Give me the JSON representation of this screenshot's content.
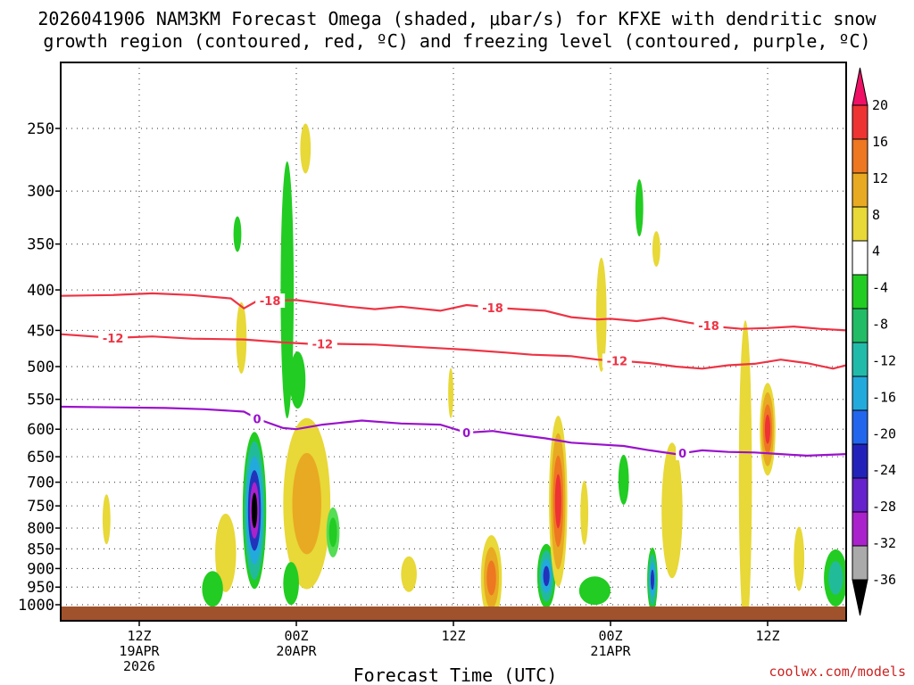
{
  "chart_data": {
    "type": "heatmap",
    "title_line1": "2026041906 NAM3KM Forecast Omega (shaded, μbar/s) for KFXE with dendritic snow",
    "title_line2": "growth region (contoured, red, ºC) and freezing level (contoured, purple, ºC)",
    "xlabel": "Forecast Time (UTC)",
    "credit": "coolwx.com/models",
    "x_unit": "forecast hours from 2026-04-19 06Z",
    "xlim": [
      0,
      60
    ],
    "ylim_hpa": [
      1030,
      200
    ],
    "y_ticks": [
      250,
      300,
      350,
      400,
      450,
      500,
      550,
      600,
      650,
      700,
      750,
      800,
      850,
      900,
      950,
      1000
    ],
    "x_ticks": [
      {
        "hour": 6,
        "line1": "12Z",
        "line2": "19APR",
        "line3": "2026"
      },
      {
        "hour": 18,
        "line1": "00Z",
        "line2": "20APR",
        "line3": ""
      },
      {
        "hour": 30,
        "line1": "12Z",
        "line2": "",
        "line3": ""
      },
      {
        "hour": 42,
        "line1": "00Z",
        "line2": "21APR",
        "line3": ""
      },
      {
        "hour": 54,
        "line1": "12Z",
        "line2": "",
        "line3": ""
      }
    ],
    "colorbar": {
      "labels": [
        "20",
        "16",
        "12",
        "8",
        "4",
        "-4",
        "-8",
        "-12",
        "-16",
        "-20",
        "-24",
        "-28",
        "-32",
        "-36"
      ],
      "colors": [
        "#ee1166",
        "#ee3333",
        "#ee7722",
        "#e8aa22",
        "#e8d838",
        "#ffffff",
        "#22cc22",
        "#22bb66",
        "#22bbaa",
        "#22aadd",
        "#2266ee",
        "#2222bb",
        "#6622cc",
        "#aa22cc",
        "#aaaaaa",
        "#000000"
      ]
    },
    "contours": [
      {
        "name": "-18 C isotherm",
        "color": "#ee3344",
        "label": "-18",
        "label_hours": [
          16,
          33,
          49.5
        ],
        "points": [
          [
            0,
            407
          ],
          [
            4,
            406
          ],
          [
            7,
            404
          ],
          [
            10,
            406
          ],
          [
            13,
            410
          ],
          [
            14,
            422
          ],
          [
            15,
            413
          ],
          [
            18,
            412
          ],
          [
            20,
            416
          ],
          [
            22,
            420
          ],
          [
            24,
            423
          ],
          [
            26,
            420
          ],
          [
            29,
            425
          ],
          [
            31,
            418
          ],
          [
            33,
            421
          ],
          [
            35,
            423
          ],
          [
            37,
            425
          ],
          [
            39,
            433
          ],
          [
            41,
            436
          ],
          [
            42,
            435
          ],
          [
            44,
            438
          ],
          [
            46,
            434
          ],
          [
            48,
            440
          ],
          [
            50,
            445
          ],
          [
            52,
            448
          ],
          [
            54,
            447
          ],
          [
            56,
            445
          ],
          [
            58,
            448
          ],
          [
            60,
            450
          ]
        ]
      },
      {
        "name": "-12 C isotherm",
        "color": "#ee3344",
        "label": "-12",
        "label_hours": [
          4,
          20,
          42.5
        ],
        "points": [
          [
            0,
            455
          ],
          [
            4,
            460
          ],
          [
            7,
            458
          ],
          [
            10,
            461
          ],
          [
            14,
            462
          ],
          [
            17,
            466
          ],
          [
            19,
            468
          ],
          [
            21,
            468
          ],
          [
            24,
            469
          ],
          [
            27,
            472
          ],
          [
            31,
            476
          ],
          [
            34,
            480
          ],
          [
            36,
            483
          ],
          [
            39,
            485
          ],
          [
            41,
            490
          ],
          [
            43,
            492
          ],
          [
            45,
            495
          ],
          [
            47,
            500
          ],
          [
            49,
            503
          ],
          [
            51,
            498
          ],
          [
            53,
            496
          ],
          [
            55,
            490
          ],
          [
            57,
            495
          ],
          [
            59,
            503
          ],
          [
            60,
            498
          ]
        ]
      },
      {
        "name": "0 C freezing level",
        "color": "#9911cc",
        "label": "0",
        "label_hours": [
          15,
          31,
          47.5
        ],
        "points": [
          [
            0,
            562
          ],
          [
            4,
            563
          ],
          [
            8,
            564
          ],
          [
            11,
            566
          ],
          [
            14,
            570
          ],
          [
            15,
            582
          ],
          [
            17,
            598
          ],
          [
            18,
            600
          ],
          [
            20,
            592
          ],
          [
            23,
            585
          ],
          [
            26,
            590
          ],
          [
            29,
            592
          ],
          [
            31,
            606
          ],
          [
            33,
            603
          ],
          [
            35,
            610
          ],
          [
            37,
            616
          ],
          [
            39,
            624
          ],
          [
            41,
            627
          ],
          [
            43,
            630
          ],
          [
            45,
            638
          ],
          [
            47,
            645
          ],
          [
            49,
            638
          ],
          [
            51,
            641
          ],
          [
            53,
            642
          ],
          [
            55,
            645
          ],
          [
            57,
            648
          ],
          [
            60,
            645
          ]
        ]
      }
    ],
    "omega_features": [
      {
        "hour": 14.8,
        "hpa": 760,
        "rx": 0.9,
        "ry": 110,
        "levels": [
          -8,
          -12,
          -16,
          -24,
          -32,
          -36
        ],
        "note": "strongest upward motion core"
      },
      {
        "hour": 17.3,
        "hpa": 400,
        "rx": 0.5,
        "ry": 180,
        "levels": [
          -8
        ],
        "note": "tall upward column"
      },
      {
        "hour": 18.7,
        "hpa": 265,
        "rx": 0.4,
        "ry": 35,
        "levels": [
          4
        ]
      },
      {
        "hour": 18.1,
        "hpa": 520,
        "rx": 0.6,
        "ry": 40,
        "levels": [
          -8
        ]
      },
      {
        "hour": 13.8,
        "hpa": 460,
        "rx": 0.4,
        "ry": 50,
        "levels": [
          4
        ]
      },
      {
        "hour": 13.5,
        "hpa": 340,
        "rx": 0.3,
        "ry": 25,
        "levels": [
          -8
        ]
      },
      {
        "hour": 18.8,
        "hpa": 745,
        "rx": 1.8,
        "ry": 120,
        "levels": [
          4,
          8
        ]
      },
      {
        "hour": 20.8,
        "hpa": 810,
        "rx": 0.5,
        "ry": 35,
        "levels": [
          -4,
          -8
        ]
      },
      {
        "hour": 12.6,
        "hpa": 860,
        "rx": 0.8,
        "ry": 55,
        "levels": [
          4
        ]
      },
      {
        "hour": 11.6,
        "hpa": 955,
        "rx": 0.8,
        "ry": 25,
        "levels": [
          -8
        ]
      },
      {
        "hour": 17.6,
        "hpa": 940,
        "rx": 0.6,
        "ry": 30,
        "levels": [
          -8
        ]
      },
      {
        "hour": 3.5,
        "hpa": 780,
        "rx": 0.3,
        "ry": 35,
        "levels": [
          4
        ]
      },
      {
        "hour": 26.6,
        "hpa": 915,
        "rx": 0.6,
        "ry": 25,
        "levels": [
          4
        ]
      },
      {
        "hour": 32.9,
        "hpa": 925,
        "rx": 0.8,
        "ry": 60,
        "levels": [
          4,
          8,
          12
        ]
      },
      {
        "hour": 37.1,
        "hpa": 920,
        "rx": 0.7,
        "ry": 45,
        "levels": [
          -8,
          -12,
          -16,
          -24
        ]
      },
      {
        "hour": 38.0,
        "hpa": 740,
        "rx": 0.7,
        "ry": 120,
        "levels": [
          4,
          8,
          12,
          16
        ]
      },
      {
        "hour": 40.0,
        "hpa": 765,
        "rx": 0.3,
        "ry": 45,
        "levels": [
          4
        ]
      },
      {
        "hour": 40.8,
        "hpa": 960,
        "rx": 1.2,
        "ry": 20,
        "levels": [
          -8
        ]
      },
      {
        "hour": 41.3,
        "hpa": 430,
        "rx": 0.4,
        "ry": 80,
        "levels": [
          4
        ]
      },
      {
        "hour": 43.0,
        "hpa": 695,
        "rx": 0.4,
        "ry": 35,
        "levels": [
          -8
        ]
      },
      {
        "hour": 45.2,
        "hpa": 930,
        "rx": 0.4,
        "ry": 45,
        "levels": [
          -8,
          -12,
          -16,
          -24
        ]
      },
      {
        "hour": 46.7,
        "hpa": 760,
        "rx": 0.8,
        "ry": 95,
        "levels": [
          4
        ]
      },
      {
        "hour": 44.2,
        "hpa": 315,
        "rx": 0.3,
        "ry": 40,
        "levels": [
          -8
        ]
      },
      {
        "hour": 45.5,
        "hpa": 355,
        "rx": 0.3,
        "ry": 25,
        "levels": [
          4
        ]
      },
      {
        "hour": 54.0,
        "hpa": 600,
        "rx": 0.6,
        "ry": 65,
        "levels": [
          4,
          8,
          12,
          16
        ]
      },
      {
        "hour": 52.3,
        "hpa": 690,
        "rx": 0.5,
        "ry": 220,
        "levels": [
          4
        ]
      },
      {
        "hour": 56.4,
        "hpa": 875,
        "rx": 0.4,
        "ry": 45,
        "levels": [
          4
        ]
      },
      {
        "hour": 59.2,
        "hpa": 925,
        "rx": 0.9,
        "ry": 40,
        "levels": [
          -8,
          -12
        ]
      },
      {
        "hour": 29.8,
        "hpa": 540,
        "rx": 0.2,
        "ry": 35,
        "levels": [
          4
        ]
      }
    ]
  }
}
